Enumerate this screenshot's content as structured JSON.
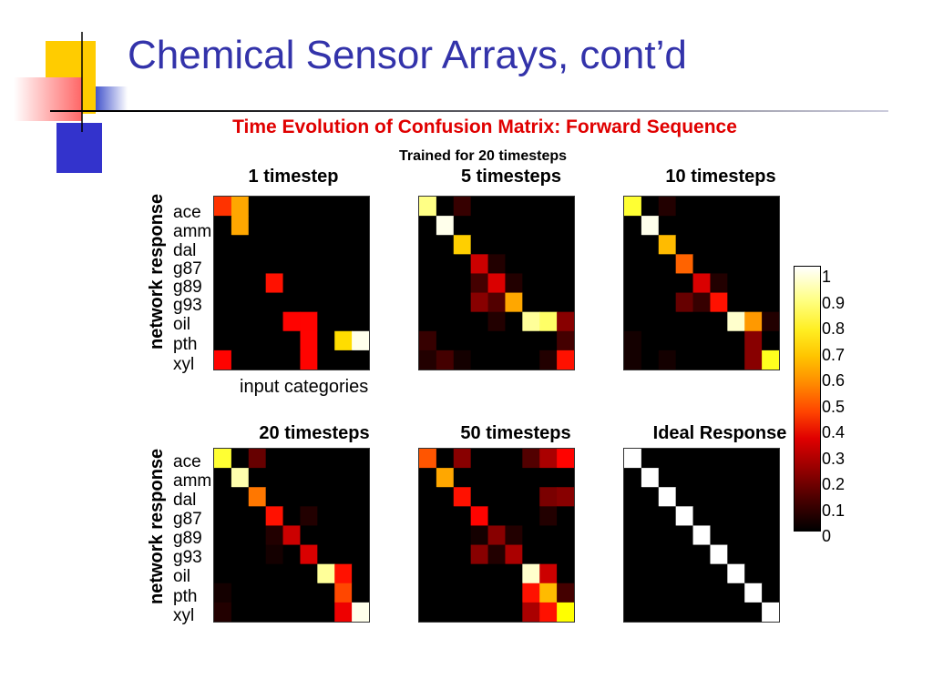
{
  "slide": {
    "title": "Chemical Sensor Arrays, cont’d",
    "subtitle": "Time Evolution of Confusion Matrix: Forward Sequence",
    "trained_note": "Trained for 20 timesteps",
    "ylabel": "network response",
    "xlabel": "input categories"
  },
  "chart_data": [
    {
      "type": "heatmap",
      "title": "1 timestep",
      "rows": [
        "ace",
        "amm",
        "dal",
        "g87",
        "g89",
        "g93",
        "oil",
        "pth",
        "xyl"
      ],
      "values": [
        [
          0.45,
          0.62,
          0,
          0,
          0,
          0,
          0,
          0,
          0
        ],
        [
          0,
          0.62,
          0,
          0,
          0,
          0,
          0,
          0,
          0
        ],
        [
          0,
          0,
          0,
          0,
          0,
          0,
          0,
          0,
          0
        ],
        [
          0,
          0,
          0,
          0,
          0,
          0,
          0,
          0,
          0
        ],
        [
          0,
          0,
          0,
          0.4,
          0,
          0,
          0,
          0,
          0
        ],
        [
          0,
          0,
          0,
          0,
          0,
          0,
          0,
          0,
          0
        ],
        [
          0,
          0,
          0,
          0,
          0.38,
          0.38,
          0,
          0,
          0
        ],
        [
          0,
          0,
          0,
          0,
          0,
          0.38,
          0,
          0.7,
          0.98
        ],
        [
          0.38,
          0,
          0,
          0,
          0,
          0.38,
          0,
          0,
          0
        ]
      ]
    },
    {
      "type": "heatmap",
      "title": "5 timesteps",
      "rows": [
        "ace",
        "amm",
        "dal",
        "g87",
        "g89",
        "g93",
        "oil",
        "pth",
        "xyl"
      ],
      "values": [
        [
          0.88,
          0,
          0.08,
          0,
          0,
          0,
          0,
          0,
          0
        ],
        [
          0,
          0.98,
          0,
          0,
          0,
          0,
          0,
          0,
          0
        ],
        [
          0,
          0,
          0.68,
          0,
          0,
          0,
          0,
          0,
          0
        ],
        [
          0,
          0,
          0,
          0.3,
          0.05,
          0,
          0,
          0,
          0
        ],
        [
          0,
          0,
          0,
          0.1,
          0.32,
          0.05,
          0,
          0,
          0
        ],
        [
          0,
          0,
          0,
          0.2,
          0.12,
          0.62,
          0,
          0,
          0
        ],
        [
          0,
          0,
          0,
          0,
          0.05,
          0,
          0.9,
          0.85,
          0.2
        ],
        [
          0.08,
          0,
          0,
          0,
          0,
          0,
          0,
          0,
          0.1
        ],
        [
          0.05,
          0.1,
          0.03,
          0,
          0,
          0,
          0,
          0.05,
          0.4
        ]
      ]
    },
    {
      "type": "heatmap",
      "title": "10 timesteps",
      "rows": [
        "ace",
        "amm",
        "dal",
        "g87",
        "g89",
        "g93",
        "oil",
        "pth",
        "xyl"
      ],
      "values": [
        [
          0.8,
          0,
          0.05,
          0,
          0,
          0,
          0,
          0,
          0
        ],
        [
          0,
          0.98,
          0,
          0,
          0,
          0,
          0,
          0,
          0
        ],
        [
          0,
          0,
          0.65,
          0,
          0,
          0,
          0,
          0,
          0
        ],
        [
          0,
          0,
          0,
          0.52,
          0,
          0,
          0,
          0,
          0
        ],
        [
          0,
          0,
          0,
          0,
          0.32,
          0.05,
          0,
          0,
          0
        ],
        [
          0,
          0,
          0,
          0.15,
          0.08,
          0.4,
          0,
          0,
          0
        ],
        [
          0,
          0,
          0,
          0,
          0,
          0,
          0.95,
          0.6,
          0.05
        ],
        [
          0.03,
          0,
          0,
          0,
          0,
          0,
          0,
          0.2,
          0
        ],
        [
          0.03,
          0,
          0.03,
          0,
          0,
          0,
          0,
          0.2,
          0.78
        ]
      ]
    },
    {
      "type": "heatmap",
      "title": "20 timesteps",
      "rows": [
        "ace",
        "amm",
        "dal",
        "g87",
        "g89",
        "g93",
        "oil",
        "pth",
        "xyl"
      ],
      "values": [
        [
          0.8,
          0,
          0.15,
          0,
          0,
          0,
          0,
          0,
          0
        ],
        [
          0,
          0.92,
          0,
          0,
          0,
          0,
          0,
          0,
          0
        ],
        [
          0,
          0,
          0.55,
          0,
          0,
          0,
          0,
          0,
          0
        ],
        [
          0,
          0,
          0,
          0.4,
          0,
          0.05,
          0,
          0,
          0
        ],
        [
          0,
          0,
          0,
          0.05,
          0.3,
          0,
          0,
          0,
          0
        ],
        [
          0,
          0,
          0,
          0.03,
          0,
          0.32,
          0,
          0,
          0
        ],
        [
          0,
          0,
          0,
          0,
          0,
          0,
          0.9,
          0.4,
          0
        ],
        [
          0.03,
          0,
          0,
          0,
          0,
          0,
          0,
          0.48,
          0
        ],
        [
          0.05,
          0,
          0,
          0,
          0,
          0,
          0,
          0.35,
          0.98
        ]
      ]
    },
    {
      "type": "heatmap",
      "title": "50 timesteps",
      "rows": [
        "ace",
        "amm",
        "dal",
        "g87",
        "g89",
        "g93",
        "oil",
        "pth",
        "xyl"
      ],
      "values": [
        [
          0.5,
          0,
          0.2,
          0,
          0,
          0,
          0.12,
          0.25,
          0.38
        ],
        [
          0,
          0.62,
          0,
          0,
          0,
          0,
          0,
          0,
          0
        ],
        [
          0,
          0,
          0.4,
          0,
          0,
          0,
          0,
          0.18,
          0.2
        ],
        [
          0,
          0,
          0,
          0.38,
          0,
          0,
          0,
          0.05,
          0
        ],
        [
          0,
          0,
          0,
          0.03,
          0.2,
          0.05,
          0,
          0,
          0
        ],
        [
          0,
          0,
          0,
          0.2,
          0.05,
          0.25,
          0,
          0,
          0
        ],
        [
          0,
          0,
          0,
          0,
          0,
          0,
          0.95,
          0.3,
          0
        ],
        [
          0,
          0,
          0,
          0,
          0,
          0,
          0.4,
          0.65,
          0.1
        ],
        [
          0,
          0,
          0,
          0,
          0,
          0,
          0.25,
          0.4,
          0.75
        ]
      ]
    },
    {
      "type": "heatmap",
      "title": "Ideal Response",
      "rows": [
        "ace",
        "amm",
        "dal",
        "g87",
        "g89",
        "g93",
        "oil",
        "pth",
        "xyl"
      ],
      "values": [
        [
          1,
          0,
          0,
          0,
          0,
          0,
          0,
          0,
          0
        ],
        [
          0,
          1,
          0,
          0,
          0,
          0,
          0,
          0,
          0
        ],
        [
          0,
          0,
          1,
          0,
          0,
          0,
          0,
          0,
          0
        ],
        [
          0,
          0,
          0,
          1,
          0,
          0,
          0,
          0,
          0
        ],
        [
          0,
          0,
          0,
          0,
          1,
          0,
          0,
          0,
          0
        ],
        [
          0,
          0,
          0,
          0,
          0,
          1,
          0,
          0,
          0
        ],
        [
          0,
          0,
          0,
          0,
          0,
          0,
          1,
          0,
          0
        ],
        [
          0,
          0,
          0,
          0,
          0,
          0,
          0,
          1,
          0
        ],
        [
          0,
          0,
          0,
          0,
          0,
          0,
          0,
          0,
          1
        ]
      ]
    }
  ],
  "colorbar": {
    "ticks": [
      "1",
      "0.9",
      "0.8",
      "0.7",
      "0.6",
      "0.5",
      "0.4",
      "0.3",
      "0.2",
      "0.1",
      "0"
    ],
    "range": [
      0,
      1
    ],
    "colormap": "hot"
  }
}
